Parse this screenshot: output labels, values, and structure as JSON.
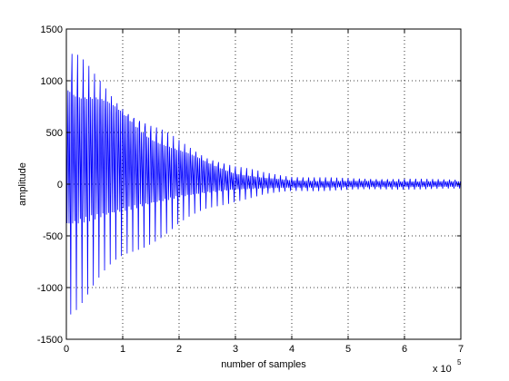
{
  "chart_data": {
    "type": "line",
    "title": "",
    "xlabel": "number of samples",
    "ylabel": "amplitude",
    "x_exponent_base": "x 10",
    "x_exponent_power": "5",
    "xlim": [
      0,
      7
    ],
    "ylim": [
      -1500,
      1500
    ],
    "xticks": [
      0,
      1,
      2,
      3,
      4,
      5,
      6,
      7
    ],
    "yticks": [
      -1500,
      -1000,
      -500,
      0,
      500,
      1000,
      1500
    ],
    "xtick_labels": [
      "0",
      "1",
      "2",
      "3",
      "4",
      "5",
      "6",
      "7"
    ],
    "ytick_labels": [
      "-1500",
      "-1000",
      "-500",
      "0",
      "500",
      "1000",
      "1500"
    ],
    "grid": true,
    "grid_style": "dotted",
    "line_color": "#0000ff",
    "series": [
      {
        "envelope": {
          "x": [
            0.0,
            0.2,
            0.5,
            1.0,
            1.5,
            2.0,
            2.5,
            3.0,
            3.5,
            4.0,
            5.0,
            6.0,
            7.0
          ],
          "upper_peak": [
            1260,
            1180,
            1000,
            780,
            560,
            400,
            270,
            170,
            110,
            75,
            55,
            50,
            45
          ],
          "lower_peak": [
            -1200,
            -1120,
            -960,
            -740,
            -540,
            -380,
            -250,
            -160,
            -100,
            -70,
            -55,
            -50,
            -45
          ],
          "upper_baseline": [
            1000,
            900,
            820,
            650,
            470,
            320,
            200,
            110,
            60,
            35,
            30,
            28,
            25
          ],
          "lower_baseline": [
            -380,
            -360,
            -320,
            -250,
            -180,
            -120,
            -80,
            -50,
            -40,
            -35,
            -30,
            -28,
            -25
          ]
        },
        "oscillation_period": 0.1
      }
    ]
  }
}
